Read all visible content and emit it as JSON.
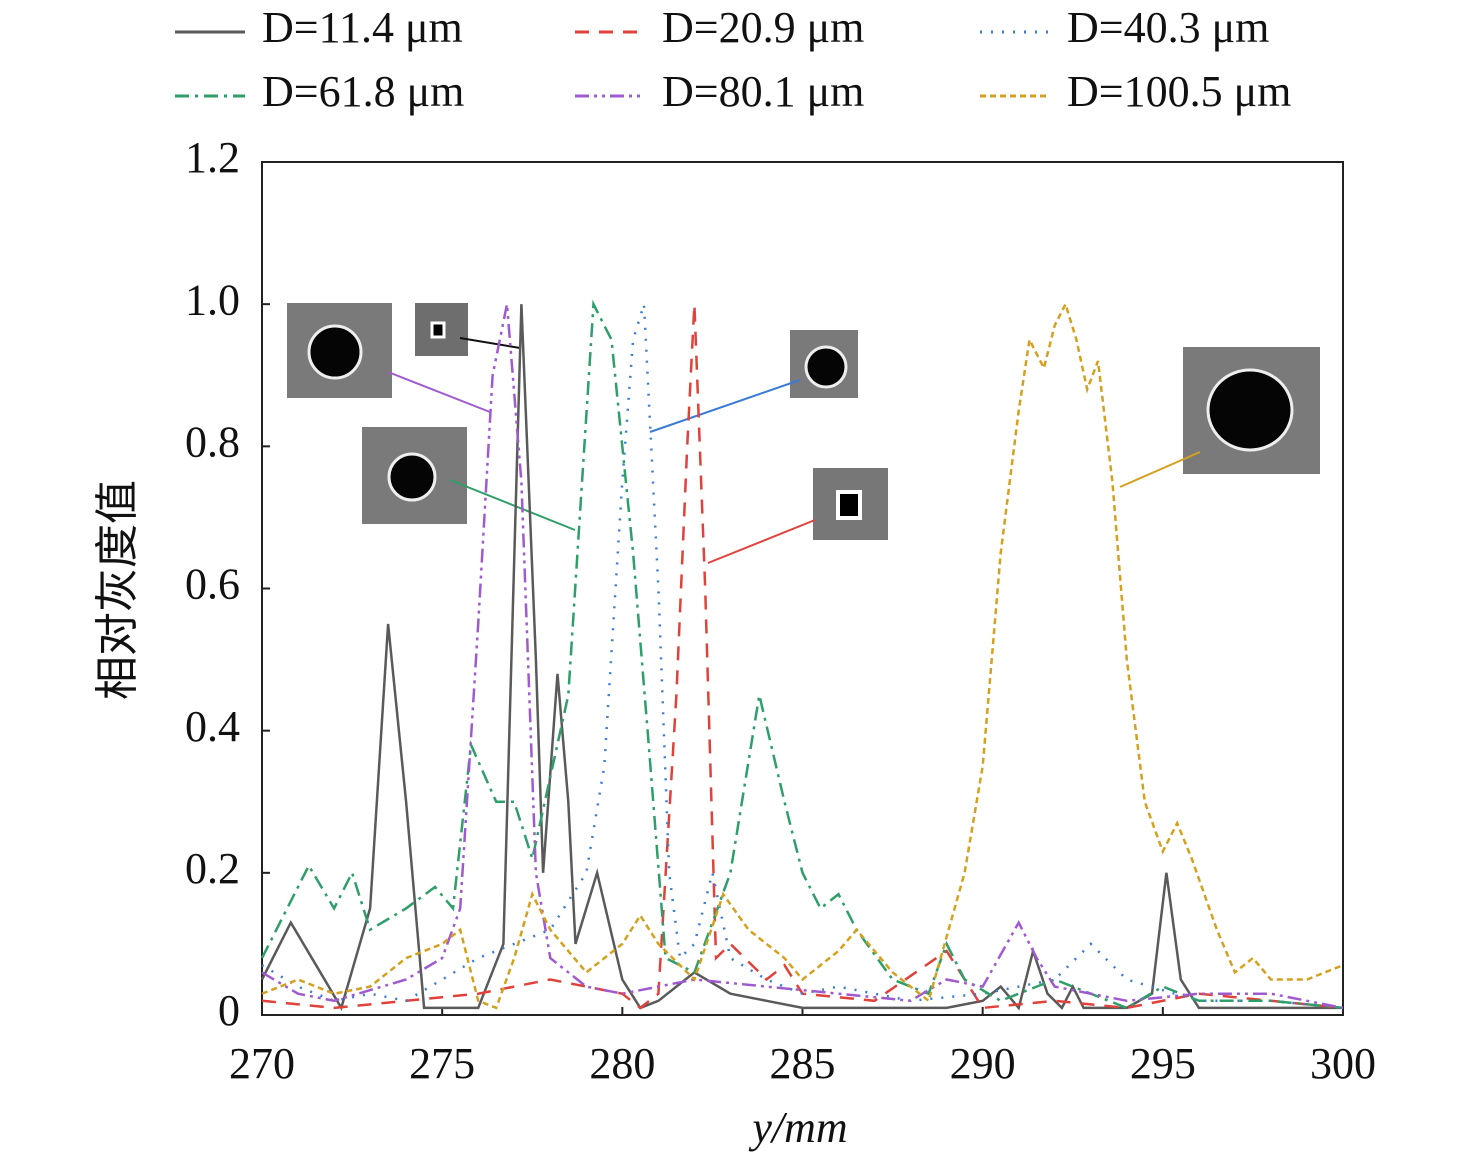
{
  "chart_data": {
    "type": "line",
    "x_label": "y/mm",
    "y_label": "相对灰度值",
    "xlim": [
      270,
      300
    ],
    "xticks": [
      270,
      275,
      280,
      285,
      290,
      295,
      300
    ],
    "ylim": [
      0,
      1.2
    ],
    "yticks": [
      0,
      0.2,
      0.4,
      0.6,
      0.8,
      {
        "value": 1,
        "label": "1.0"
      },
      1.2
    ],
    "grid": false,
    "series": [
      {
        "name": "D=11.4 μm",
        "color": "#5a5a5a",
        "dash": "solid",
        "x": [
          270,
          270.8,
          271.5,
          272.2,
          273,
          273.5,
          274,
          274.5,
          275,
          276,
          276.7,
          277.2,
          277.6,
          277.8,
          278.2,
          278.5,
          278.7,
          279.3,
          280,
          280.5,
          281,
          282,
          283,
          284,
          285,
          286,
          287,
          288,
          289,
          290,
          290.5,
          291,
          291.4,
          291.8,
          292.2,
          292.5,
          292.8,
          293.2,
          294,
          294.7,
          295.1,
          295.5,
          296,
          297,
          298,
          299,
          300
        ],
        "values": [
          0.05,
          0.13,
          0.07,
          0.01,
          0.15,
          0.55,
          0.3,
          0.01,
          0.01,
          0.01,
          0.1,
          1.0,
          0.5,
          0.2,
          0.48,
          0.3,
          0.1,
          0.2,
          0.05,
          0.01,
          0.02,
          0.06,
          0.03,
          0.02,
          0.01,
          0.01,
          0.01,
          0.01,
          0.01,
          0.02,
          0.04,
          0.01,
          0.09,
          0.03,
          0.01,
          0.04,
          0.01,
          0.01,
          0.01,
          0.03,
          0.2,
          0.05,
          0.01,
          0.01,
          0.01,
          0.01,
          0.01
        ]
      },
      {
        "name": "D=20.9 μm",
        "color": "#e0413a",
        "dash": "dashed",
        "x": [
          270,
          272,
          274,
          276,
          278,
          279,
          280,
          280.5,
          281,
          281.5,
          281.8,
          282,
          282.3,
          282.6,
          283,
          284,
          284.5,
          285,
          287,
          289,
          290,
          292,
          294,
          296,
          298,
          300
        ],
        "values": [
          0.02,
          0.01,
          0.02,
          0.03,
          0.05,
          0.04,
          0.03,
          0.01,
          0.03,
          0.45,
          0.8,
          1.0,
          0.6,
          0.08,
          0.1,
          0.05,
          0.07,
          0.03,
          0.02,
          0.09,
          0.01,
          0.02,
          0.01,
          0.03,
          0.02,
          0.01
        ]
      },
      {
        "name": "D=40.3 μm",
        "color": "#3a7bd5",
        "dash": "dotted",
        "x": [
          270,
          271,
          272,
          273,
          274,
          275,
          276,
          277,
          278,
          279,
          279.5,
          280,
          280.3,
          280.6,
          281,
          281.3,
          281.6,
          282,
          282.5,
          283,
          284,
          285,
          286,
          288,
          290,
          292,
          293,
          294,
          296,
          298,
          300
        ],
        "values": [
          0.07,
          0.04,
          0.02,
          0.03,
          0.02,
          0.05,
          0.08,
          0.1,
          0.12,
          0.2,
          0.35,
          0.75,
          0.95,
          1.0,
          0.6,
          0.2,
          0.08,
          0.1,
          0.2,
          0.08,
          0.05,
          0.03,
          0.04,
          0.02,
          0.03,
          0.05,
          0.1,
          0.05,
          0.02,
          0.02,
          0.01
        ]
      },
      {
        "name": "D=61.8 μm",
        "color": "#2e9e6a",
        "dash": "dash-dot",
        "x": [
          270,
          271.3,
          272,
          272.5,
          273,
          274,
          274.8,
          275.3,
          275.8,
          276.5,
          277,
          277.5,
          278.5,
          279.2,
          279.7,
          280.3,
          280.7,
          281.2,
          282,
          283,
          283.8,
          284.5,
          285,
          285.5,
          286,
          286.5,
          287.5,
          288.5,
          289,
          289.5,
          290.5,
          292,
          294,
          295,
          296,
          298,
          300
        ],
        "values": [
          0.08,
          0.21,
          0.15,
          0.2,
          0.12,
          0.15,
          0.18,
          0.15,
          0.38,
          0.3,
          0.3,
          0.22,
          0.45,
          1.0,
          0.95,
          0.65,
          0.4,
          0.08,
          0.06,
          0.2,
          0.45,
          0.3,
          0.2,
          0.15,
          0.17,
          0.12,
          0.05,
          0.03,
          0.1,
          0.05,
          0.02,
          0.05,
          0.01,
          0.04,
          0.02,
          0.02,
          0.01
        ]
      },
      {
        "name": "D=80.1 μm",
        "color": "#a05ad0",
        "dash": "dash-dot-dot",
        "x": [
          270,
          271,
          272,
          274,
          275,
          275.5,
          276,
          276.4,
          276.8,
          277.2,
          277.6,
          278,
          279,
          280,
          282,
          284,
          286,
          288,
          289,
          290,
          291,
          291.5,
          292,
          294,
          296,
          298,
          300
        ],
        "values": [
          0.06,
          0.03,
          0.02,
          0.05,
          0.08,
          0.15,
          0.55,
          0.9,
          1.0,
          0.75,
          0.2,
          0.08,
          0.04,
          0.03,
          0.05,
          0.04,
          0.03,
          0.02,
          0.05,
          0.04,
          0.13,
          0.08,
          0.04,
          0.02,
          0.03,
          0.03,
          0.01
        ]
      },
      {
        "name": "D=100.5 μm",
        "color": "#d4a020",
        "dash": "short-dash",
        "x": [
          270,
          271,
          272,
          273,
          274,
          275,
          275.5,
          276,
          276.5,
          277,
          277.5,
          278,
          279,
          280,
          280.5,
          281,
          282,
          282.8,
          283.5,
          284.5,
          285,
          286,
          286.5,
          287.5,
          288.5,
          289.5,
          290,
          290.5,
          291,
          291.3,
          291.7,
          292,
          292.3,
          292.6,
          292.9,
          293.2,
          293.6,
          294,
          294.5,
          295,
          295.4,
          295.8,
          296.5,
          297,
          297.5,
          298,
          299,
          300
        ],
        "values": [
          0.03,
          0.05,
          0.03,
          0.04,
          0.08,
          0.1,
          0.12,
          0.02,
          0.01,
          0.08,
          0.17,
          0.12,
          0.06,
          0.1,
          0.14,
          0.1,
          0.05,
          0.17,
          0.12,
          0.08,
          0.05,
          0.09,
          0.12,
          0.06,
          0.02,
          0.2,
          0.35,
          0.65,
          0.85,
          0.95,
          0.91,
          0.97,
          1.0,
          0.95,
          0.88,
          0.92,
          0.75,
          0.5,
          0.3,
          0.23,
          0.27,
          0.22,
          0.12,
          0.06,
          0.08,
          0.05,
          0.05,
          0.07
        ]
      }
    ]
  }
}
